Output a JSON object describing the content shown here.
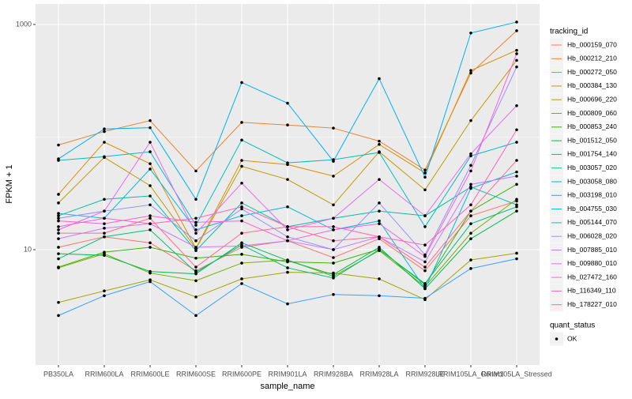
{
  "chart_data": {
    "type": "line",
    "x_label": "sample_name",
    "y_label": "FPKM + 1",
    "log_y": true,
    "grid": true,
    "categories": [
      "PB350LA",
      "RRIM600LA",
      "RRIM600LE",
      "RRIM600SE",
      "RRIM600PE",
      "RRIM901LA",
      "RRIM928BA",
      "RRIM928LA",
      "RRIM928LE",
      "RRIM105LA_Control",
      "RRIM105LA_Stressed"
    ],
    "ylim": [
      0.945,
      1521
    ],
    "yticks": [
      10,
      1000
    ],
    "minor_yticks": [
      100
    ],
    "legend_title": "tracking_id",
    "point_legend": {
      "title": "quant_status",
      "labels": [
        "OK"
      ],
      "color": "#000000"
    },
    "series": [
      {
        "name": "Hb_000159_070",
        "color": "#F8766D",
        "values": [
          10.5,
          13,
          11.5,
          6.5,
          10.5,
          12,
          8.5,
          12.5,
          6.5,
          20,
          27
        ]
      },
      {
        "name": "Hb_000212_210",
        "color": "#EA8331",
        "values": [
          85,
          112,
          140,
          50,
          135,
          128,
          120,
          92,
          51,
          370,
          880
        ]
      },
      {
        "name": "Hb_000272_050",
        "color": "#D89000",
        "values": [
          31,
          90,
          58,
          10.3,
          62,
          57,
          45,
          86,
          48,
          390,
          590
        ]
      },
      {
        "name": "Hb_000384_130",
        "color": "#C09B00",
        "values": [
          26,
          66,
          37,
          10.2,
          55,
          42,
          25,
          74,
          34,
          140,
          480
        ]
      },
      {
        "name": "Hb_000696_220",
        "color": "#A3A500",
        "values": [
          3.4,
          4.3,
          5.4,
          3.8,
          5.5,
          6.3,
          6.2,
          5.5,
          3.6,
          8.1,
          9.3
        ]
      },
      {
        "name": "Hb_000809_060",
        "color": "#7CAE00",
        "values": [
          6.9,
          9.2,
          6.2,
          5.3,
          7.6,
          8.1,
          5.8,
          9.8,
          4.7,
          14,
          28
        ]
      },
      {
        "name": "Hb_000853_240",
        "color": "#39B600",
        "values": [
          7,
          9.5,
          10.5,
          8.4,
          9.1,
          7.8,
          7.6,
          10.1,
          4.9,
          22,
          38
        ]
      },
      {
        "name": "Hb_001512_050",
        "color": "#00BB4E",
        "values": [
          9.2,
          8.9,
          6.4,
          6.1,
          11.5,
          8,
          6,
          10.5,
          4.5,
          12.5,
          22
        ]
      },
      {
        "name": "Hb_001754_140",
        "color": "#00BF7D",
        "values": [
          8.3,
          13,
          15,
          6.3,
          11,
          6.9,
          5.6,
          10,
          5,
          17,
          24
        ]
      },
      {
        "name": "Hb_003057_020",
        "color": "#00C1A3",
        "values": [
          20,
          28,
          30,
          9.8,
          26,
          16,
          19,
          22,
          20,
          36,
          25
        ]
      },
      {
        "name": "Hb_003058_080",
        "color": "#00BFC4",
        "values": [
          62,
          67,
          74,
          16.5,
          94,
          59,
          63,
          73,
          16,
          68,
          90
        ]
      },
      {
        "name": "Hb_003198_010",
        "color": "#00BAE0",
        "values": [
          21,
          19,
          52,
          15,
          20,
          24,
          15,
          18,
          4.5,
          35,
          49
        ]
      },
      {
        "name": "Hb_004755_030",
        "color": "#00B0F6",
        "values": [
          64,
          118,
          121,
          28,
          305,
          200,
          61,
          330,
          44,
          840,
          1050
        ]
      },
      {
        "name": "Hb_005144_070",
        "color": "#35A2FF",
        "values": [
          2.6,
          3.9,
          5.2,
          2.6,
          5,
          3.3,
          4,
          3.9,
          3.7,
          6.8,
          8.3
        ]
      },
      {
        "name": "Hb_006028_020",
        "color": "#9590FF",
        "values": [
          19,
          22,
          25,
          12,
          23,
          13,
          10,
          26,
          9,
          56,
          420
        ]
      },
      {
        "name": "Hb_007885_010",
        "color": "#C77CFF",
        "values": [
          12.5,
          15.5,
          17,
          10.5,
          10.8,
          12,
          10,
          13,
          7.8,
          38,
          45
        ]
      },
      {
        "name": "Hb_009880_010",
        "color": "#E76BF3",
        "values": [
          15,
          22,
          90,
          14,
          39,
          15,
          19,
          42,
          20,
          71,
          190
        ]
      },
      {
        "name": "Hb_027472_160",
        "color": "#FA62DB",
        "values": [
          18,
          17,
          20,
          17.5,
          18,
          12,
          15,
          17,
          8.7,
          50,
          550
        ]
      },
      {
        "name": "Hb_116349_110",
        "color": "#FF62BC",
        "values": [
          16,
          19,
          17,
          19,
          24,
          16,
          16,
          13,
          11,
          25,
          116
        ]
      },
      {
        "name": "Hb_178227_010",
        "color": "#FF6C91",
        "values": [
          14,
          14,
          19,
          7,
          14,
          16,
          12,
          13,
          7,
          22,
          62
        ]
      }
    ]
  }
}
